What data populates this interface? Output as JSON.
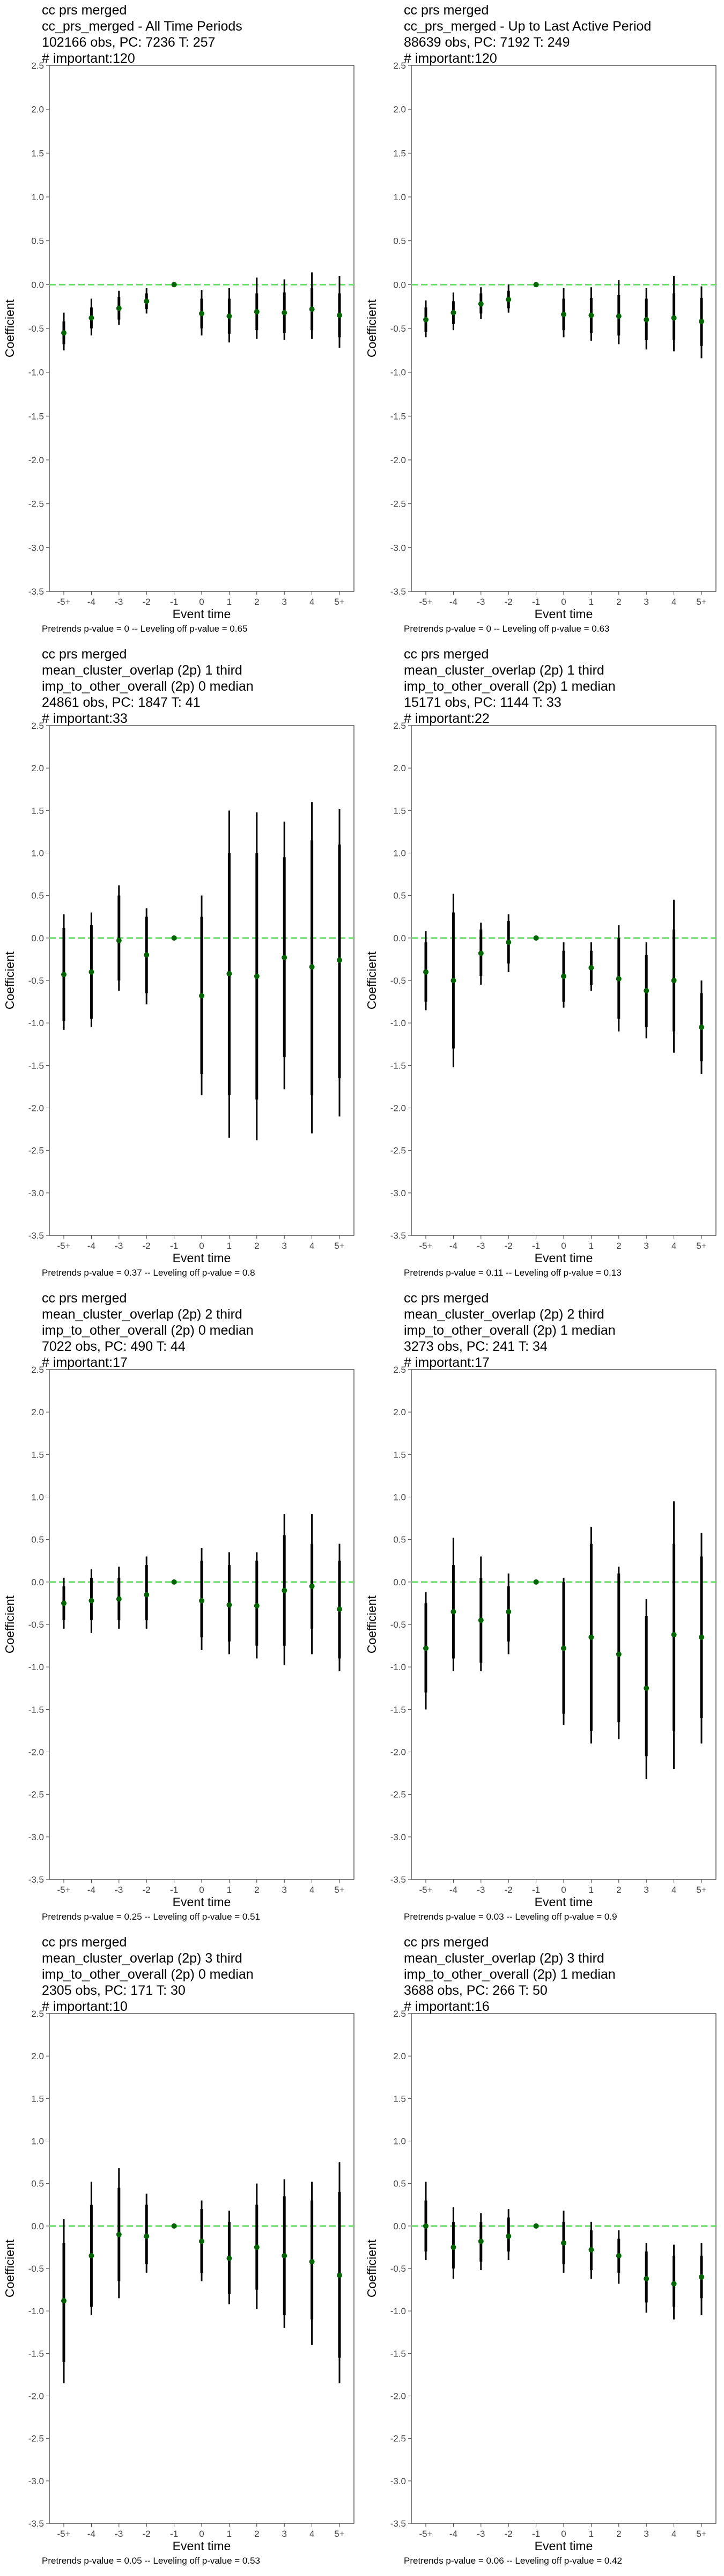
{
  "chart_data": [
    {
      "type": "scatter",
      "titles": [
        "cc prs merged",
        "cc_prs_merged - All Time Periods",
        "102166 obs, PC: 7236 T: 257",
        "# important:120"
      ],
      "caption": "Pretrends p-value = 0 -- Leveling off p-value = 0.65",
      "xlabel": "Event time",
      "ylabel": "Coefficient",
      "categories": [
        "-5+",
        "-4",
        "-3",
        "-2",
        "-1",
        "0",
        "1",
        "2",
        "3",
        "4",
        "5+"
      ],
      "ylim": [
        -3.5,
        2.5
      ],
      "yticks": [
        "2.5",
        "2.0",
        "1.5",
        "1.0",
        "0.5",
        "0.0",
        "-0.5",
        "-1.0",
        "-1.5",
        "-2.0",
        "-2.5",
        "-3.0",
        "-3.5"
      ],
      "reference_line": 0,
      "estimate": [
        -0.55,
        -0.38,
        -0.27,
        -0.19,
        0.0,
        -0.33,
        -0.36,
        -0.31,
        -0.32,
        -0.28,
        -0.35
      ],
      "ci90": [
        [
          -0.68,
          -0.42
        ],
        [
          -0.5,
          -0.26
        ],
        [
          -0.4,
          -0.14
        ],
        [
          -0.28,
          -0.1
        ],
        [
          0,
          0
        ],
        [
          -0.5,
          -0.16
        ],
        [
          -0.56,
          -0.16
        ],
        [
          -0.52,
          -0.1
        ],
        [
          -0.55,
          -0.09
        ],
        [
          -0.52,
          -0.04
        ],
        [
          -0.6,
          -0.1
        ]
      ],
      "ci95": [
        [
          -0.75,
          -0.32
        ],
        [
          -0.58,
          -0.16
        ],
        [
          -0.46,
          -0.07
        ],
        [
          -0.33,
          -0.04
        ],
        [
          0,
          0
        ],
        [
          -0.58,
          -0.06
        ],
        [
          -0.66,
          -0.04
        ],
        [
          -0.62,
          0.08
        ],
        [
          -0.63,
          0.06
        ],
        [
          -0.62,
          0.14
        ],
        [
          -0.72,
          0.1
        ]
      ],
      "colors": {
        "point": "#006400",
        "interval": "#000000",
        "reference_line": "#66dd66",
        "axis": "#333333"
      }
    },
    {
      "type": "scatter",
      "titles": [
        "cc prs merged",
        "cc_prs_merged - Up to Last Active Period",
        "88639 obs, PC: 7192 T: 249",
        "# important:120"
      ],
      "caption": "Pretrends p-value = 0 -- Leveling off p-value = 0.63",
      "xlabel": "Event time",
      "ylabel": "Coefficient",
      "categories": [
        "-5+",
        "-4",
        "-3",
        "-2",
        "-1",
        "0",
        "1",
        "2",
        "3",
        "4",
        "5+"
      ],
      "ylim": [
        -3.5,
        2.5
      ],
      "yticks": [
        "2.5",
        "2.0",
        "1.5",
        "1.0",
        "0.5",
        "0.0",
        "-0.5",
        "-1.0",
        "-1.5",
        "-2.0",
        "-2.5",
        "-3.0",
        "-3.5"
      ],
      "reference_line": 0,
      "estimate": [
        -0.4,
        -0.32,
        -0.22,
        -0.17,
        0.0,
        -0.34,
        -0.35,
        -0.36,
        -0.4,
        -0.38,
        -0.42
      ],
      "ci90": [
        [
          -0.54,
          -0.26
        ],
        [
          -0.45,
          -0.19
        ],
        [
          -0.33,
          -0.1
        ],
        [
          -0.27,
          -0.07
        ],
        [
          0,
          0
        ],
        [
          -0.52,
          -0.16
        ],
        [
          -0.55,
          -0.15
        ],
        [
          -0.58,
          -0.12
        ],
        [
          -0.63,
          -0.16
        ],
        [
          -0.63,
          -0.1
        ],
        [
          -0.7,
          -0.15
        ]
      ],
      "ci95": [
        [
          -0.6,
          -0.18
        ],
        [
          -0.52,
          -0.09
        ],
        [
          -0.39,
          -0.03
        ],
        [
          -0.32,
          0.0
        ],
        [
          0,
          0
        ],
        [
          -0.6,
          -0.04
        ],
        [
          -0.64,
          -0.03
        ],
        [
          -0.68,
          0.05
        ],
        [
          -0.74,
          -0.04
        ],
        [
          -0.76,
          0.1
        ],
        [
          -0.84,
          -0.02
        ]
      ],
      "colors": {
        "point": "#006400",
        "interval": "#000000",
        "reference_line": "#66dd66",
        "axis": "#333333"
      }
    },
    {
      "type": "scatter",
      "titles": [
        "cc prs merged",
        "mean_cluster_overlap (2p) 1 third",
        "imp_to_other_overall (2p) 0 median",
        "24861 obs, PC: 1847 T: 41",
        "# important:33"
      ],
      "caption": "Pretrends p-value = 0.37 -- Leveling off p-value = 0.8",
      "xlabel": "Event time",
      "ylabel": "Coefficient",
      "categories": [
        "-5+",
        "-4",
        "-3",
        "-2",
        "-1",
        "0",
        "1",
        "2",
        "3",
        "4",
        "5+"
      ],
      "ylim": [
        -3.5,
        2.5
      ],
      "yticks": [
        "2.5",
        "2.0",
        "1.5",
        "1.0",
        "0.5",
        "0.0",
        "-0.5",
        "-1.0",
        "-1.5",
        "-2.0",
        "-2.5",
        "-3.0",
        "-3.5"
      ],
      "reference_line": 0,
      "estimate": [
        -0.43,
        -0.4,
        -0.03,
        -0.2,
        0.0,
        -0.68,
        -0.42,
        -0.45,
        -0.23,
        -0.34,
        -0.26
      ],
      "ci90": [
        [
          -0.98,
          0.12
        ],
        [
          -0.95,
          0.15
        ],
        [
          -0.5,
          0.5
        ],
        [
          -0.65,
          0.25
        ],
        [
          0,
          0
        ],
        [
          -1.6,
          0.25
        ],
        [
          -1.85,
          1.0
        ],
        [
          -1.9,
          1.0
        ],
        [
          -1.4,
          0.95
        ],
        [
          -1.85,
          1.15
        ],
        [
          -1.65,
          1.1
        ]
      ],
      "ci95": [
        [
          -1.08,
          0.28
        ],
        [
          -1.05,
          0.3
        ],
        [
          -0.62,
          0.62
        ],
        [
          -0.78,
          0.35
        ],
        [
          0,
          0
        ],
        [
          -1.85,
          0.5
        ],
        [
          -2.35,
          1.5
        ],
        [
          -2.38,
          1.48
        ],
        [
          -1.78,
          1.37
        ],
        [
          -2.3,
          1.6
        ],
        [
          -2.1,
          1.52
        ]
      ],
      "colors": {
        "point": "#006400",
        "interval": "#000000",
        "reference_line": "#66dd66",
        "axis": "#333333"
      }
    },
    {
      "type": "scatter",
      "titles": [
        "cc prs merged",
        "mean_cluster_overlap (2p) 1 third",
        "imp_to_other_overall (2p) 1 median",
        "15171 obs, PC: 1144 T: 33",
        "# important:22"
      ],
      "caption": "Pretrends p-value = 0.11 -- Leveling off p-value = 0.13",
      "xlabel": "Event time",
      "ylabel": "Coefficient",
      "categories": [
        "-5+",
        "-4",
        "-3",
        "-2",
        "-1",
        "0",
        "1",
        "2",
        "3",
        "4",
        "5+"
      ],
      "ylim": [
        -3.5,
        2.5
      ],
      "yticks": [
        "2.5",
        "2.0",
        "1.5",
        "1.0",
        "0.5",
        "0.0",
        "-0.5",
        "-1.0",
        "-1.5",
        "-2.0",
        "-2.5",
        "-3.0",
        "-3.5"
      ],
      "reference_line": 0,
      "estimate": [
        -0.4,
        -0.5,
        -0.18,
        -0.05,
        0.0,
        -0.45,
        -0.35,
        -0.48,
        -0.62,
        -0.5,
        -1.05
      ],
      "ci90": [
        [
          -0.75,
          -0.05
        ],
        [
          -1.3,
          0.3
        ],
        [
          -0.45,
          0.1
        ],
        [
          -0.3,
          0.2
        ],
        [
          0,
          0
        ],
        [
          -0.75,
          -0.15
        ],
        [
          -0.55,
          -0.15
        ],
        [
          -0.95,
          0.0
        ],
        [
          -1.05,
          -0.2
        ],
        [
          -1.1,
          0.1
        ],
        [
          -1.45,
          -0.65
        ]
      ],
      "ci95": [
        [
          -0.85,
          0.08
        ],
        [
          -1.52,
          0.52
        ],
        [
          -0.55,
          0.18
        ],
        [
          -0.4,
          0.28
        ],
        [
          0,
          0
        ],
        [
          -0.82,
          -0.05
        ],
        [
          -0.62,
          -0.05
        ],
        [
          -1.1,
          0.15
        ],
        [
          -1.18,
          -0.05
        ],
        [
          -1.35,
          0.45
        ],
        [
          -1.6,
          -0.5
        ]
      ],
      "colors": {
        "point": "#006400",
        "interval": "#000000",
        "reference_line": "#66dd66",
        "axis": "#333333"
      }
    },
    {
      "type": "scatter",
      "titles": [
        "cc prs merged",
        "mean_cluster_overlap (2p) 2 third",
        "imp_to_other_overall (2p) 0 median",
        "7022 obs, PC: 490 T: 44",
        "# important:17"
      ],
      "caption": "Pretrends p-value = 0.25 -- Leveling off p-value = 0.51",
      "xlabel": "Event time",
      "ylabel": "Coefficient",
      "categories": [
        "-5+",
        "-4",
        "-3",
        "-2",
        "-1",
        "0",
        "1",
        "2",
        "3",
        "4",
        "5+"
      ],
      "ylim": [
        -3.5,
        2.5
      ],
      "yticks": [
        "2.5",
        "2.0",
        "1.5",
        "1.0",
        "0.5",
        "0.0",
        "-0.5",
        "-1.0",
        "-1.5",
        "-2.0",
        "-2.5",
        "-3.0",
        "-3.5"
      ],
      "reference_line": 0,
      "estimate": [
        -0.25,
        -0.22,
        -0.2,
        -0.15,
        0.0,
        -0.22,
        -0.27,
        -0.28,
        -0.1,
        -0.05,
        -0.32
      ],
      "ci90": [
        [
          -0.45,
          -0.05
        ],
        [
          -0.45,
          0.05
        ],
        [
          -0.45,
          0.05
        ],
        [
          -0.45,
          0.2
        ],
        [
          0,
          0
        ],
        [
          -0.65,
          0.25
        ],
        [
          -0.7,
          0.2
        ],
        [
          -0.75,
          0.25
        ],
        [
          -0.75,
          0.55
        ],
        [
          -0.55,
          0.45
        ],
        [
          -0.9,
          0.25
        ]
      ],
      "ci95": [
        [
          -0.55,
          0.05
        ],
        [
          -0.6,
          0.15
        ],
        [
          -0.55,
          0.18
        ],
        [
          -0.55,
          0.3
        ],
        [
          0,
          0
        ],
        [
          -0.8,
          0.4
        ],
        [
          -0.85,
          0.35
        ],
        [
          -0.9,
          0.35
        ],
        [
          -0.98,
          0.8
        ],
        [
          -0.85,
          0.8
        ],
        [
          -1.05,
          0.45
        ]
      ],
      "colors": {
        "point": "#006400",
        "interval": "#000000",
        "reference_line": "#66dd66",
        "axis": "#333333"
      }
    },
    {
      "type": "scatter",
      "titles": [
        "cc prs merged",
        "mean_cluster_overlap (2p) 2 third",
        "imp_to_other_overall (2p) 1 median",
        "3273 obs, PC: 241 T: 34",
        "# important:17"
      ],
      "caption": "Pretrends p-value = 0.03 -- Leveling off p-value = 0.9",
      "xlabel": "Event time",
      "ylabel": "Coefficient",
      "categories": [
        "-5+",
        "-4",
        "-3",
        "-2",
        "-1",
        "0",
        "1",
        "2",
        "3",
        "4",
        "5+"
      ],
      "ylim": [
        -3.5,
        2.5
      ],
      "yticks": [
        "2.5",
        "2.0",
        "1.5",
        "1.0",
        "0.5",
        "0.0",
        "-0.5",
        "-1.0",
        "-1.5",
        "-2.0",
        "-2.5",
        "-3.0",
        "-3.5"
      ],
      "reference_line": 0,
      "estimate": [
        -0.78,
        -0.35,
        -0.45,
        -0.35,
        0.0,
        -0.78,
        -0.65,
        -0.85,
        -1.25,
        -0.62,
        -0.65
      ],
      "ci90": [
        [
          -1.3,
          -0.25
        ],
        [
          -0.9,
          0.2
        ],
        [
          -0.95,
          0.05
        ],
        [
          -0.7,
          -0.05
        ],
        [
          0,
          0
        ],
        [
          -1.55,
          0.0
        ],
        [
          -1.75,
          0.45
        ],
        [
          -1.65,
          0.1
        ],
        [
          -2.05,
          -0.4
        ],
        [
          -1.75,
          0.45
        ],
        [
          -1.6,
          0.3
        ]
      ],
      "ci95": [
        [
          -1.5,
          -0.12
        ],
        [
          -1.05,
          0.52
        ],
        [
          -1.05,
          0.3
        ],
        [
          -0.85,
          0.1
        ],
        [
          0,
          0
        ],
        [
          -1.68,
          0.05
        ],
        [
          -1.9,
          0.65
        ],
        [
          -1.85,
          0.18
        ],
        [
          -2.32,
          -0.2
        ],
        [
          -2.2,
          0.95
        ],
        [
          -1.9,
          0.58
        ]
      ],
      "colors": {
        "point": "#006400",
        "interval": "#000000",
        "reference_line": "#66dd66",
        "axis": "#333333"
      }
    },
    {
      "type": "scatter",
      "titles": [
        "cc prs merged",
        "mean_cluster_overlap (2p) 3 third",
        "imp_to_other_overall (2p) 0 median",
        "2305 obs, PC: 171 T: 30",
        "# important:10"
      ],
      "caption": "Pretrends p-value = 0.05 -- Leveling off p-value = 0.53",
      "xlabel": "Event time",
      "ylabel": "Coefficient",
      "categories": [
        "-5+",
        "-4",
        "-3",
        "-2",
        "-1",
        "0",
        "1",
        "2",
        "3",
        "4",
        "5+"
      ],
      "ylim": [
        -3.5,
        2.5
      ],
      "yticks": [
        "2.5",
        "2.0",
        "1.5",
        "1.0",
        "0.5",
        "0.0",
        "-0.5",
        "-1.0",
        "-1.5",
        "-2.0",
        "-2.5",
        "-3.0",
        "-3.5"
      ],
      "reference_line": 0,
      "estimate": [
        -0.88,
        -0.35,
        -0.1,
        -0.12,
        0.0,
        -0.18,
        -0.38,
        -0.25,
        -0.35,
        -0.42,
        -0.58
      ],
      "ci90": [
        [
          -1.6,
          -0.2
        ],
        [
          -0.95,
          0.25
        ],
        [
          -0.65,
          0.45
        ],
        [
          -0.45,
          0.25
        ],
        [
          0,
          0
        ],
        [
          -0.55,
          0.2
        ],
        [
          -0.8,
          0.05
        ],
        [
          -0.75,
          0.25
        ],
        [
          -1.05,
          0.35
        ],
        [
          -1.1,
          0.3
        ],
        [
          -1.55,
          0.4
        ]
      ],
      "ci95": [
        [
          -1.85,
          0.08
        ],
        [
          -1.05,
          0.52
        ],
        [
          -0.85,
          0.68
        ],
        [
          -0.55,
          0.38
        ],
        [
          0,
          0
        ],
        [
          -0.65,
          0.3
        ],
        [
          -0.92,
          0.18
        ],
        [
          -0.98,
          0.5
        ],
        [
          -1.2,
          0.55
        ],
        [
          -1.4,
          0.52
        ],
        [
          -1.85,
          0.75
        ]
      ],
      "colors": {
        "point": "#006400",
        "interval": "#000000",
        "reference_line": "#66dd66",
        "axis": "#333333"
      }
    },
    {
      "type": "scatter",
      "titles": [
        "cc prs merged",
        "mean_cluster_overlap (2p) 3 third",
        "imp_to_other_overall (2p) 1 median",
        "3688 obs, PC: 266 T: 50",
        "# important:16"
      ],
      "caption": "Pretrends p-value = 0.06 -- Leveling off p-value = 0.42",
      "xlabel": "Event time",
      "ylabel": "Coefficient",
      "categories": [
        "-5+",
        "-4",
        "-3",
        "-2",
        "-1",
        "0",
        "1",
        "2",
        "3",
        "4",
        "5+"
      ],
      "ylim": [
        -3.5,
        2.5
      ],
      "yticks": [
        "2.5",
        "2.0",
        "1.5",
        "1.0",
        "0.5",
        "0.0",
        "-0.5",
        "-1.0",
        "-1.5",
        "-2.0",
        "-2.5",
        "-3.0",
        "-3.5"
      ],
      "reference_line": 0,
      "estimate": [
        0.0,
        -0.25,
        -0.18,
        -0.12,
        0.0,
        -0.2,
        -0.28,
        -0.35,
        -0.62,
        -0.68,
        -0.6
      ],
      "ci90": [
        [
          -0.3,
          0.3
        ],
        [
          -0.5,
          0.05
        ],
        [
          -0.42,
          0.05
        ],
        [
          -0.3,
          0.1
        ],
        [
          0,
          0
        ],
        [
          -0.45,
          0.05
        ],
        [
          -0.52,
          -0.05
        ],
        [
          -0.55,
          -0.15
        ],
        [
          -0.9,
          -0.3
        ],
        [
          -0.95,
          -0.35
        ],
        [
          -0.85,
          -0.35
        ]
      ],
      "ci95": [
        [
          -0.4,
          0.52
        ],
        [
          -0.62,
          0.22
        ],
        [
          -0.52,
          0.15
        ],
        [
          -0.4,
          0.2
        ],
        [
          0,
          0
        ],
        [
          -0.55,
          0.18
        ],
        [
          -0.62,
          0.05
        ],
        [
          -0.68,
          -0.05
        ],
        [
          -1.02,
          -0.2
        ],
        [
          -1.1,
          -0.22
        ],
        [
          -1.05,
          -0.2
        ]
      ],
      "colors": {
        "point": "#006400",
        "interval": "#000000",
        "reference_line": "#66dd66",
        "axis": "#333333"
      }
    }
  ]
}
